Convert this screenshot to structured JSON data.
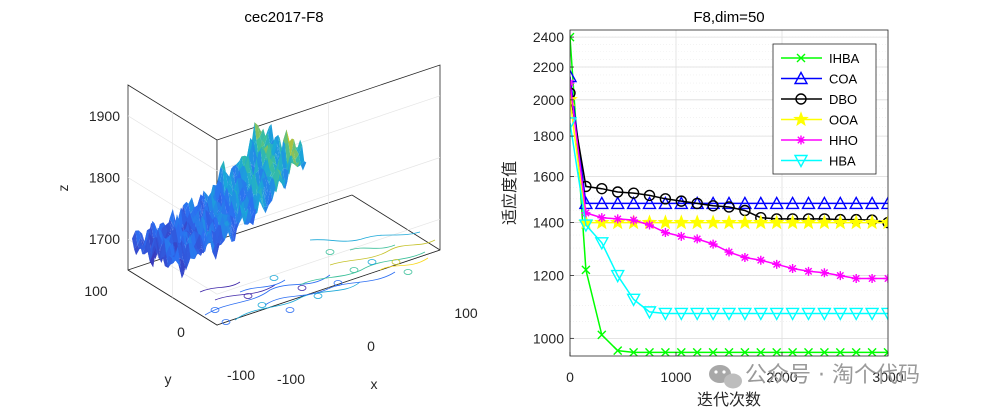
{
  "chart_data": [
    {
      "type": "surface",
      "title": "cec2017-F8",
      "xlabel": "x",
      "ylabel": "y",
      "zlabel": "z",
      "xlim": [
        -100,
        100
      ],
      "ylim": [
        -100,
        100
      ],
      "zlim": [
        1650,
        1950
      ],
      "x_ticks": [
        "-100",
        "0",
        "100"
      ],
      "y_ticks": [
        "-100",
        "0",
        "100"
      ],
      "z_ticks": [
        "1700",
        "1800",
        "1900"
      ],
      "z_tick_values": [
        1700,
        1800,
        1900
      ],
      "colormap": "parula",
      "contour_on_floor": true,
      "grid": true
    },
    {
      "type": "line",
      "title": "F8,dim=50",
      "xlabel": "迭代次数",
      "ylabel": "适应度值",
      "xlim": [
        0,
        3000
      ],
      "ylim": [
        950,
        2450
      ],
      "yscale": "log",
      "x_ticks": [
        0,
        1000,
        2000,
        3000
      ],
      "y_ticks": [
        1000,
        1200,
        1400,
        1600,
        1800,
        2000,
        2200,
        2400
      ],
      "grid": true,
      "legend_position": "top-right",
      "x": [
        0,
        150,
        300,
        450,
        600,
        750,
        900,
        1050,
        1200,
        1350,
        1500,
        1650,
        1800,
        1950,
        2100,
        2250,
        2400,
        2550,
        2700,
        2850,
        3000
      ],
      "series": [
        {
          "name": "IHBA",
          "color": "#00ff00",
          "marker": "x",
          "values": [
            2400,
            1220,
            1010,
            965,
            960,
            960,
            960,
            960,
            960,
            960,
            960,
            960,
            960,
            960,
            960,
            960,
            960,
            960,
            960,
            960,
            960
          ]
        },
        {
          "name": "COA",
          "color": "#0000ff",
          "marker": "triangle-up",
          "values": [
            2140,
            1480,
            1480,
            1480,
            1480,
            1480,
            1480,
            1480,
            1480,
            1480,
            1480,
            1480,
            1480,
            1480,
            1480,
            1480,
            1480,
            1480,
            1480,
            1480,
            1480
          ]
        },
        {
          "name": "DBO",
          "color": "#000000",
          "marker": "circle",
          "values": [
            2040,
            1555,
            1545,
            1530,
            1525,
            1515,
            1500,
            1490,
            1480,
            1470,
            1465,
            1450,
            1420,
            1415,
            1415,
            1415,
            1415,
            1412,
            1412,
            1410,
            1400
          ]
        },
        {
          "name": "OOA",
          "color": "#ffff00",
          "marker": "star",
          "values": [
            2000,
            1400,
            1400,
            1400,
            1400,
            1400,
            1400,
            1400,
            1400,
            1400,
            1400,
            1400,
            1400,
            1400,
            1400,
            1400,
            1400,
            1400,
            1400,
            1400,
            1400
          ]
        },
        {
          "name": "HHO",
          "color": "#ff00ff",
          "marker": "asterisk",
          "values": [
            2100,
            1440,
            1420,
            1415,
            1410,
            1390,
            1360,
            1345,
            1335,
            1315,
            1285,
            1265,
            1255,
            1240,
            1225,
            1215,
            1210,
            1200,
            1190,
            1190,
            1190
          ]
        },
        {
          "name": "HBA",
          "color": "#00ffff",
          "marker": "triangle-down",
          "values": [
            1870,
            1390,
            1320,
            1200,
            1120,
            1080,
            1075,
            1075,
            1075,
            1075,
            1075,
            1075,
            1075,
            1075,
            1075,
            1075,
            1075,
            1075,
            1075,
            1075,
            1075
          ]
        }
      ]
    }
  ],
  "watermark": {
    "text": "公众号 · 淘个代码",
    "icon": "wechat-icon"
  }
}
